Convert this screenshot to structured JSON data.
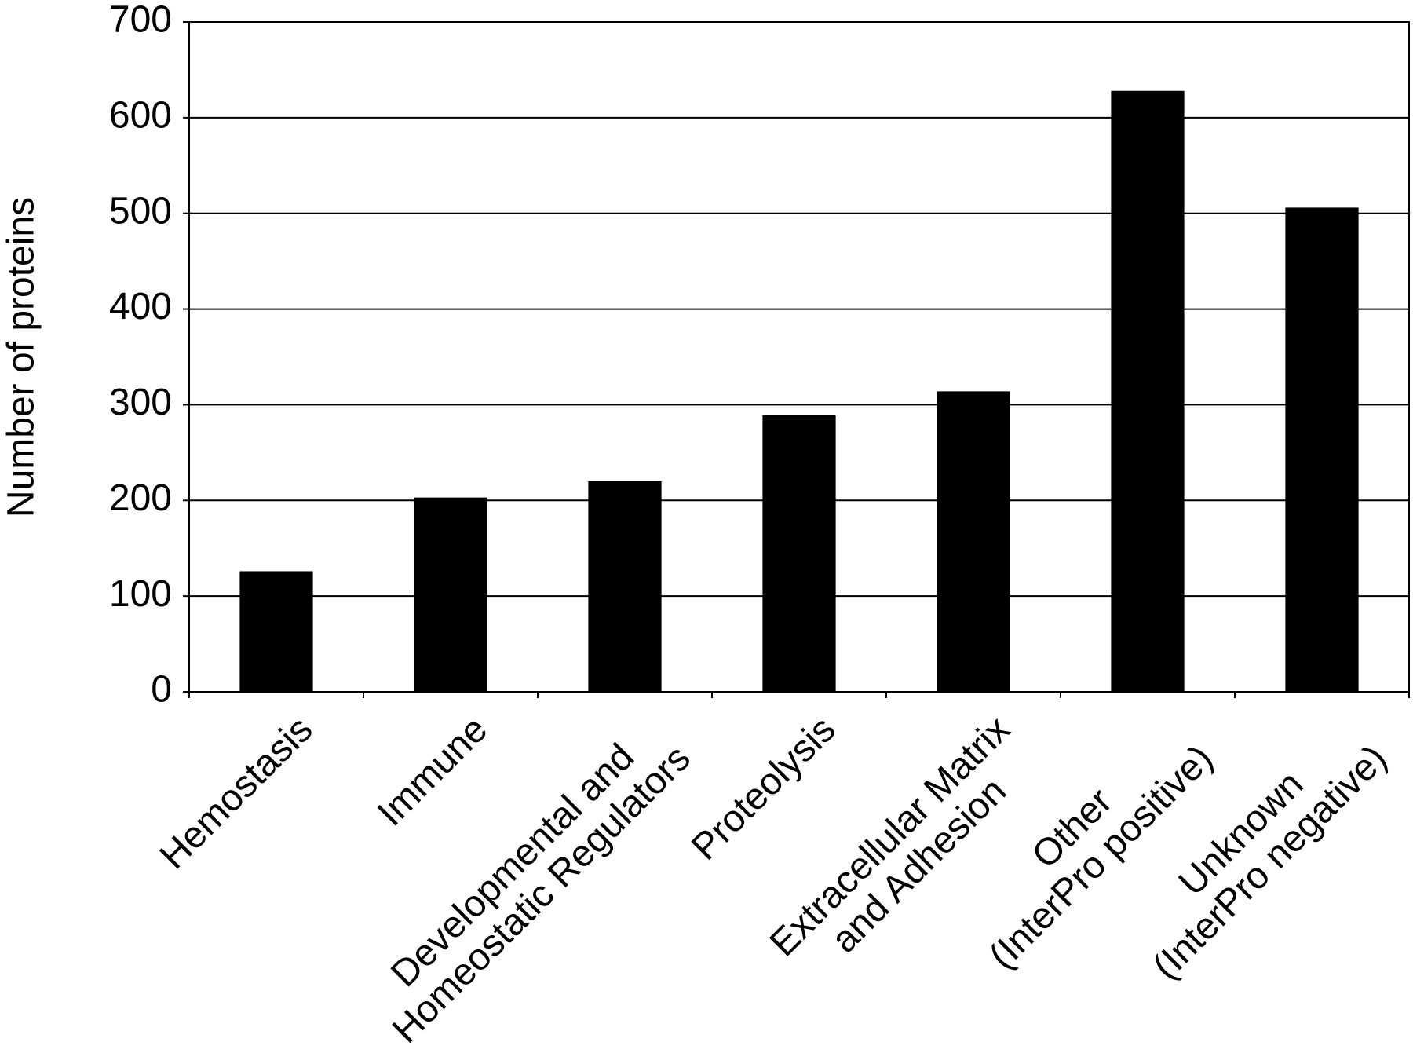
{
  "chart_data": {
    "type": "bar",
    "y_label": "Number of proteins",
    "categories": [
      "Hemostasis",
      "Immune",
      "Developmental and\nHomeostatic Regulators",
      "Proteolysis",
      "Extracellular Matrix\nand Adhesion",
      "Other\n(InterPro positive)",
      "Unknown\n(InterPro negative)"
    ],
    "values": [
      126,
      203,
      220,
      289,
      314,
      628,
      506
    ],
    "color": "#000000",
    "ylim": [
      0,
      700
    ],
    "yticks": [
      0,
      100,
      200,
      300,
      400,
      500,
      600,
      700
    ],
    "grid": true
  }
}
